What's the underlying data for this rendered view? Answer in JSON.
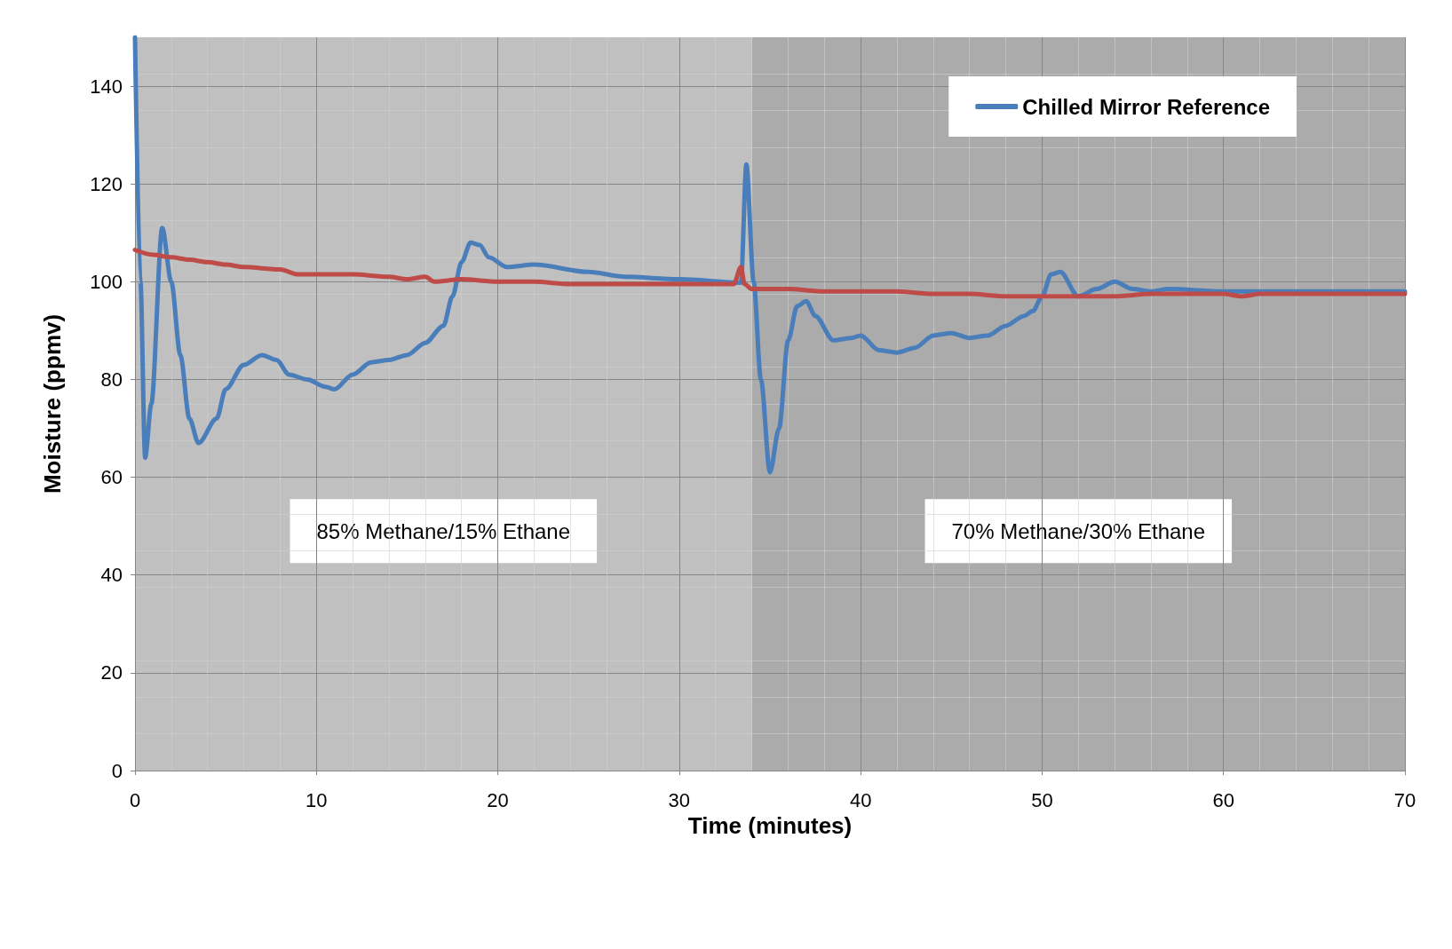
{
  "chart_data": {
    "type": "line",
    "xlabel": "Time (minutes)",
    "ylabel": "Moisture (ppmv)",
    "xlim": [
      0,
      70
    ],
    "xticks": [
      0,
      10,
      20,
      30,
      40,
      50,
      60,
      70
    ],
    "ylim": [
      0,
      150
    ],
    "yticks": [
      0,
      20,
      40,
      60,
      80,
      100,
      120,
      140
    ],
    "grid": true,
    "legend": "top right",
    "marker": "none",
    "line_style": "solid",
    "bands": [
      {
        "axis": "x",
        "from": 0,
        "to": 34,
        "label": "85% Methane/15% Ethane",
        "color": "#c0c0c0"
      },
      {
        "axis": "x",
        "from": 34,
        "to": 70,
        "label": "70% Methane/30% Ethane",
        "color": "#ababab"
      }
    ],
    "series": [
      {
        "name": "Chilled Mirror Reference",
        "color": "#4a7ebb",
        "x": [
          0,
          0.3,
          0.56,
          0.9,
          1.5,
          2,
          2.5,
          3,
          3.5,
          4.5,
          5,
          6,
          7,
          7.8,
          8.5,
          9.5,
          10.5,
          11,
          12,
          13,
          14,
          15,
          16,
          17,
          17.5,
          18,
          18.5,
          19,
          19.5,
          20.5,
          22,
          25,
          27,
          30,
          33.4,
          33.7,
          34.1,
          34.5,
          35,
          35.5,
          36,
          36.5,
          37,
          37.5,
          38.5,
          39.5,
          40,
          41,
          42,
          43,
          44,
          45,
          46,
          47,
          48,
          49,
          49.5,
          50,
          50.5,
          51,
          52,
          53,
          54,
          55,
          56,
          57,
          60,
          70
        ],
        "values": [
          150,
          100,
          64,
          75,
          111,
          100,
          85,
          72,
          67,
          72,
          78,
          83,
          85,
          84,
          81,
          80,
          78.5,
          78,
          81,
          83.5,
          84,
          85,
          87.5,
          91,
          97,
          104,
          108,
          107.5,
          105,
          103,
          103.5,
          102,
          101,
          100.5,
          99.8,
          124,
          100,
          80,
          61,
          70,
          88,
          95,
          96,
          93,
          88,
          88.5,
          89,
          86,
          85.5,
          86.5,
          89,
          89.5,
          88.5,
          89,
          91,
          93,
          94,
          97,
          101.5,
          102,
          97,
          98.5,
          100,
          98.5,
          98,
          98.5,
          98,
          98
        ]
      },
      {
        "color": "#be4b48",
        "x": [
          0,
          1,
          2,
          3,
          4,
          5,
          6,
          8,
          9,
          10,
          12,
          14,
          15,
          16,
          16.5,
          18,
          20,
          22,
          24,
          26,
          28,
          30,
          33,
          33.4,
          33.6,
          34,
          36,
          38,
          40,
          42,
          44,
          46,
          48,
          50,
          52,
          54,
          56,
          58,
          60,
          61,
          62,
          64,
          66,
          70
        ],
        "values": [
          106.5,
          105.5,
          105,
          104.5,
          104,
          103.5,
          103,
          102.5,
          101.5,
          101.5,
          101.5,
          101,
          100.5,
          101,
          100,
          100.5,
          100,
          100,
          99.5,
          99.5,
          99.5,
          99.5,
          99.5,
          103,
          99.5,
          98.5,
          98.5,
          98,
          98,
          98,
          97.5,
          97.5,
          97,
          97,
          97,
          97,
          97.5,
          97.5,
          97.5,
          97,
          97.5,
          97.5,
          97.5,
          97.5
        ]
      }
    ]
  }
}
